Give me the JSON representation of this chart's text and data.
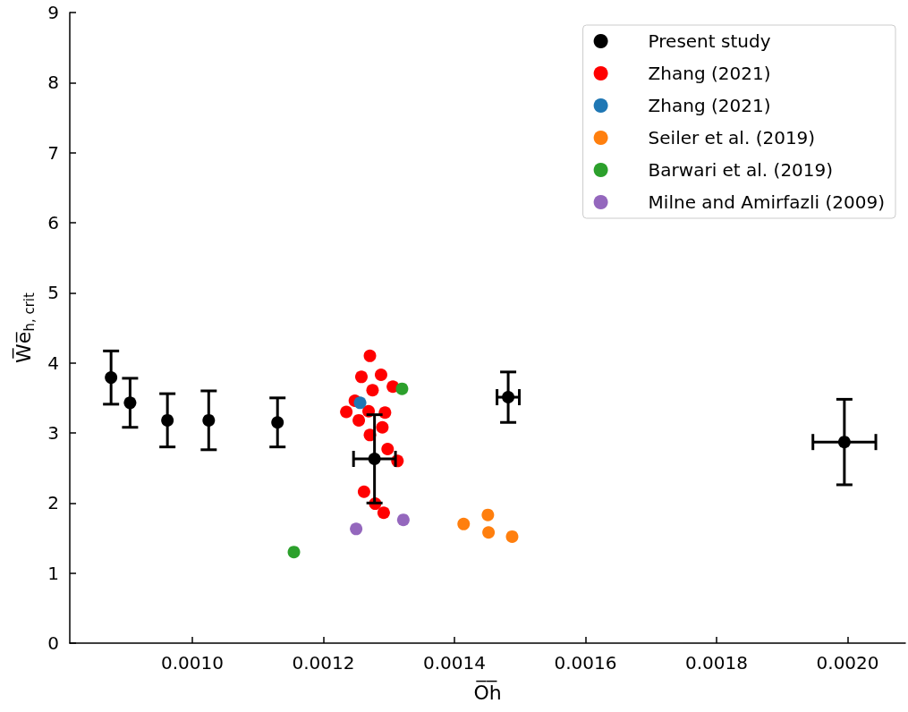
{
  "chart_data": {
    "type": "scatter",
    "xlabel": "O̅h̅",
    "ylabel": "W̅e̅$_{h, crit}$",
    "xlim": [
      0.000813,
      0.002088
    ],
    "ylim": [
      0,
      9
    ],
    "xticks": [
      {
        "value": 0.001,
        "label": "0.0010"
      },
      {
        "value": 0.0012,
        "label": "0.0012"
      },
      {
        "value": 0.0014,
        "label": "0.0014"
      },
      {
        "value": 0.0016,
        "label": "0.0016"
      },
      {
        "value": 0.0018,
        "label": "0.0018"
      },
      {
        "value": 0.002,
        "label": "0.0020"
      }
    ],
    "yticks": [
      0,
      1,
      2,
      3,
      4,
      5,
      6,
      7,
      8,
      9
    ],
    "grid": false,
    "legend": "top right",
    "marker": "circle",
    "series": [
      {
        "name": "Present study",
        "color": "#000000",
        "x": [
          0.000876,
          0.000905,
          0.000962,
          0.001025,
          0.00113,
          0.001278,
          0.001482,
          0.001995
        ],
        "values": [
          3.79,
          3.43,
          3.18,
          3.18,
          3.15,
          2.63,
          3.51,
          2.87
        ],
        "errors": [
          0.38,
          0.35,
          0.38,
          0.42,
          0.35,
          0.63,
          0.36,
          0.61
        ],
        "xerrors": [
          null,
          null,
          null,
          null,
          null,
          3.2e-05,
          1.7e-05,
          4.8e-05
        ]
      },
      {
        "name": "Zhang (2021)",
        "color": "#ff0000",
        "x": [
          0.001271,
          0.001258,
          0.001288,
          0.001275,
          0.001306,
          0.001248,
          0.001235,
          0.001254,
          0.001269,
          0.001294,
          0.00129,
          0.001271,
          0.001298,
          0.001313,
          0.001262,
          0.001279,
          0.001292
        ],
        "values": [
          4.1,
          3.8,
          3.83,
          3.61,
          3.66,
          3.46,
          3.3,
          3.18,
          3.31,
          3.29,
          3.08,
          2.97,
          2.77,
          2.6,
          2.16,
          1.99,
          1.86
        ]
      },
      {
        "name": "Zhang (2021)",
        "color": "#1f77b4",
        "x": [
          0.001256
        ],
        "values": [
          3.43
        ]
      },
      {
        "name": "Seiler et al. (2019)",
        "color": "#ff7f0e",
        "x": [
          0.001414,
          0.001451,
          0.001452,
          0.001488
        ],
        "values": [
          1.7,
          1.83,
          1.58,
          1.52
        ]
      },
      {
        "name": "Barwari et al. (2019)",
        "color": "#2ca02c",
        "x": [
          0.00132,
          0.001155
        ],
        "values": [
          3.63,
          1.3
        ]
      },
      {
        "name": "Milne and Amirfazli (2009)",
        "color": "#9467bd",
        "x": [
          0.00125,
          0.001322
        ],
        "values": [
          1.63,
          1.76
        ]
      }
    ]
  }
}
